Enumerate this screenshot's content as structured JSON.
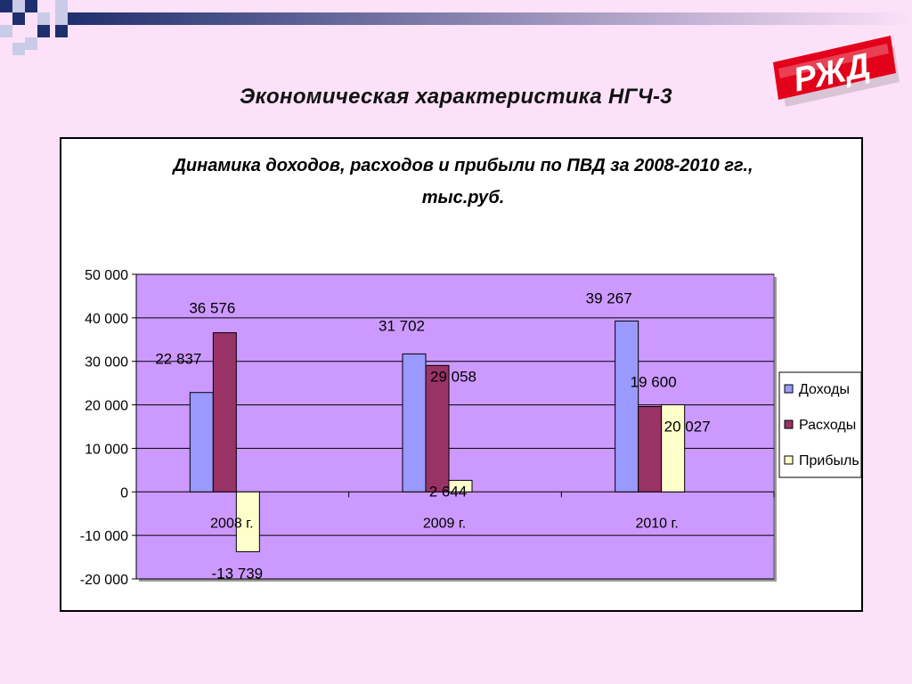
{
  "slide": {
    "title": "Экономическая характеристика НГЧ-3"
  },
  "logo": {
    "text": "РЖД",
    "color": "#e2001a"
  },
  "colors": {
    "background": "#fce1f8",
    "plot_area": "#cc99ff",
    "deco_navy": "#1f2f6e",
    "deco_light": "#c9cbe8"
  },
  "chart_data": {
    "type": "bar",
    "title": "Динамика доходов, расходов и прибыли по ПВД за 2008-2010 гг.,",
    "subtitle": "тыс.руб.",
    "categories": [
      "2008 г.",
      "2009 г.",
      "2010 г."
    ],
    "series": [
      {
        "name": "Доходы",
        "color": "#9999ff",
        "values": [
          22837,
          31702,
          39267
        ],
        "labels": [
          "22 837",
          "31 702",
          "39 267"
        ]
      },
      {
        "name": "Расходы",
        "color": "#993366",
        "values": [
          36576,
          29058,
          19600
        ],
        "labels": [
          "36 576",
          "29 058",
          "19 600"
        ]
      },
      {
        "name": "Прибыль",
        "color": "#ffffcc",
        "values": [
          -13739,
          2644,
          20027
        ],
        "labels": [
          "-13 739",
          "2 644",
          "20 027"
        ]
      }
    ],
    "ylim": [
      -20000,
      50000
    ],
    "yticks": [
      50000,
      40000,
      30000,
      20000,
      10000,
      0,
      -10000,
      -20000
    ],
    "ytick_labels": [
      "50 000",
      "40 000",
      "30 000",
      "20 000",
      "10 000",
      "0",
      "-10 000",
      "-20 000"
    ],
    "grid": true,
    "legend": "right"
  }
}
